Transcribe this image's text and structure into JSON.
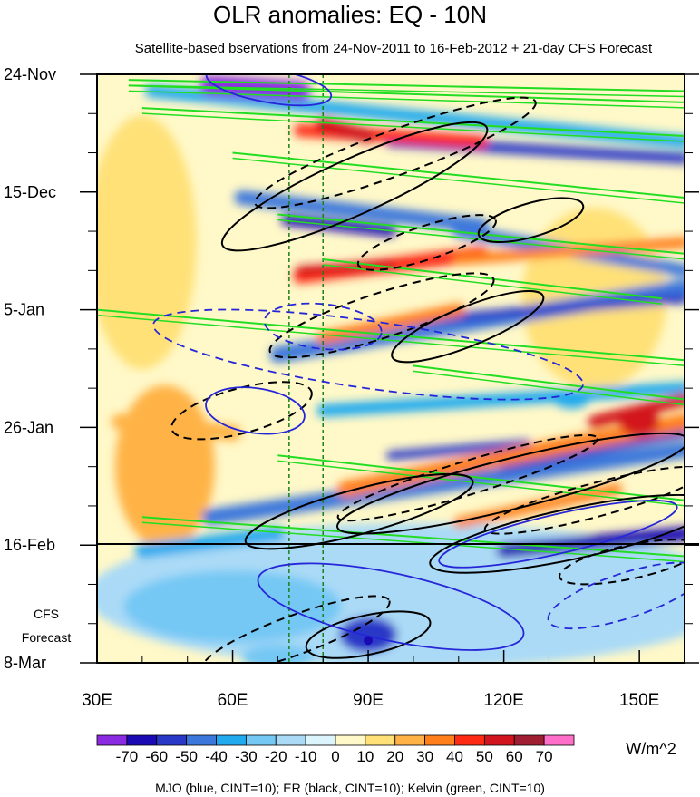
{
  "chart_data": {
    "type": "heatmap",
    "title": "OLR anomalies: EQ - 10N",
    "subtitle": "Satellite-based bservations from 24-Nov-2011 to 16-Feb-2012 + 21-day CFS Forecast",
    "x_axis": {
      "ticks": [
        30,
        60,
        90,
        120,
        150
      ],
      "tick_labels": [
        "30E",
        "60E",
        "90E",
        "120E",
        "150E"
      ],
      "range": [
        30,
        160
      ]
    },
    "y_axis": {
      "tick_labels": [
        "24-Nov",
        "15-Dec",
        "5-Jan",
        "26-Jan",
        "16-Feb",
        "8-Mar"
      ],
      "tick_day_offsets": [
        0,
        21,
        42,
        63,
        84,
        105
      ],
      "range_day_offsets": [
        0,
        105
      ],
      "direction": "time increases downward"
    },
    "forecast_boundary_label": "16-Feb",
    "forecast_label": [
      "CFS",
      "Forecast"
    ],
    "reference_longitudes": [
      72.5,
      80
    ],
    "colorbar": {
      "levels": [
        -70,
        -60,
        -50,
        -40,
        -30,
        -20,
        -10,
        0,
        10,
        20,
        30,
        40,
        50,
        60,
        70
      ],
      "level_labels": [
        "-70",
        "-60",
        "-50",
        "-40",
        "-30",
        "-20",
        "-10",
        "0",
        "10",
        "20",
        "30",
        "40",
        "50",
        "60",
        "70"
      ],
      "colors": [
        "#8a2be2",
        "#1a0ab4",
        "#2a38c8",
        "#3c78dc",
        "#22aaee",
        "#74c8f4",
        "#aadaf6",
        "#dcf4fc",
        "#fff8c8",
        "#ffe178",
        "#ffb347",
        "#ff7f1a",
        "#ff2a14",
        "#d2141e",
        "#a01e32",
        "#ff6ec8"
      ],
      "units": "W/m^2"
    },
    "contour_legend": "MJO (blue, CINT=10); ER (black, CINT=10); Kelvin (green, CINT=10)",
    "contour_colors": {
      "mjo": "#2626d9",
      "er": "#000000",
      "kelvin": "#22dd22"
    },
    "features": {
      "kelvin": [
        {
          "lon": [
            37,
            160
          ],
          "day": [
            1,
            3
          ]
        },
        {
          "lon": [
            37,
            160
          ],
          "day": [
            2,
            5
          ]
        },
        {
          "lon": [
            40,
            160
          ],
          "day": [
            6,
            11
          ]
        },
        {
          "lon": [
            60,
            160
          ],
          "day": [
            14,
            22
          ]
        },
        {
          "lon": [
            70,
            160
          ],
          "day": [
            25,
            32
          ]
        },
        {
          "lon": [
            80,
            155
          ],
          "day": [
            33,
            40
          ]
        },
        {
          "lon": [
            30,
            160
          ],
          "day": [
            42,
            51
          ]
        },
        {
          "lon": [
            100,
            160
          ],
          "day": [
            52,
            58
          ]
        },
        {
          "lon": [
            70,
            160
          ],
          "day": [
            68,
            76
          ]
        },
        {
          "lon": [
            40,
            160
          ],
          "day": [
            79,
            86
          ]
        }
      ],
      "er_solid": [
        {
          "cx": 87,
          "cy": 20,
          "rx": 32,
          "ry": 5,
          "angle": -24
        },
        {
          "cx": 126,
          "cy": 26,
          "rx": 12,
          "ry": 3,
          "angle": -16
        },
        {
          "cx": 112,
          "cy": 45,
          "rx": 18,
          "ry": 3.5,
          "angle": -22
        },
        {
          "cx": 88,
          "cy": 78,
          "rx": 26,
          "ry": 4,
          "angle": -15
        },
        {
          "cx": 122,
          "cy": 73,
          "rx": 40,
          "ry": 4.5,
          "angle": -14
        },
        {
          "cx": 135,
          "cy": 82,
          "rx": 32,
          "ry": 4.5,
          "angle": -12
        },
        {
          "cx": 90,
          "cy": 100,
          "rx": 14,
          "ry": 3.5,
          "angle": -12
        }
      ],
      "er_dashed": [
        {
          "cx": 96,
          "cy": 14,
          "rx": 33,
          "ry": 4,
          "angle": -20
        },
        {
          "cx": 103,
          "cy": 30,
          "rx": 16,
          "ry": 3,
          "angle": -18
        },
        {
          "cx": 93,
          "cy": 43,
          "rx": 26,
          "ry": 4,
          "angle": -18
        },
        {
          "cx": 62,
          "cy": 60,
          "rx": 16,
          "ry": 4,
          "angle": -15
        },
        {
          "cx": 112,
          "cy": 72,
          "rx": 30,
          "ry": 3,
          "angle": -17
        },
        {
          "cx": 140,
          "cy": 76,
          "rx": 25,
          "ry": 3,
          "angle": -15
        },
        {
          "cx": 148,
          "cy": 87,
          "rx": 16,
          "ry": 3,
          "angle": -12
        },
        {
          "cx": 74,
          "cy": 100,
          "rx": 22,
          "ry": 3.5,
          "angle": -20
        }
      ],
      "mjo_solid": [
        {
          "cx": 68,
          "cy": 2,
          "rx": 14,
          "ry": 3,
          "angle": 10
        },
        {
          "cx": 65,
          "cy": 60,
          "rx": 11,
          "ry": 4,
          "angle": 8
        },
        {
          "cx": 95,
          "cy": 95,
          "rx": 30,
          "ry": 6,
          "angle": 12
        },
        {
          "cx": 132,
          "cy": 82,
          "rx": 27,
          "ry": 3.5,
          "angle": -13
        }
      ],
      "mjo_dashed": [
        {
          "cx": 90,
          "cy": 50,
          "rx": 48,
          "ry": 6,
          "angle": 8
        },
        {
          "cx": 80,
          "cy": 45,
          "rx": 13,
          "ry": 4,
          "angle": 6
        },
        {
          "cx": 147,
          "cy": 93,
          "rx": 18,
          "ry": 4,
          "angle": -18
        }
      ],
      "mjo_marker": {
        "lon": 90,
        "day": 101
      }
    }
  }
}
